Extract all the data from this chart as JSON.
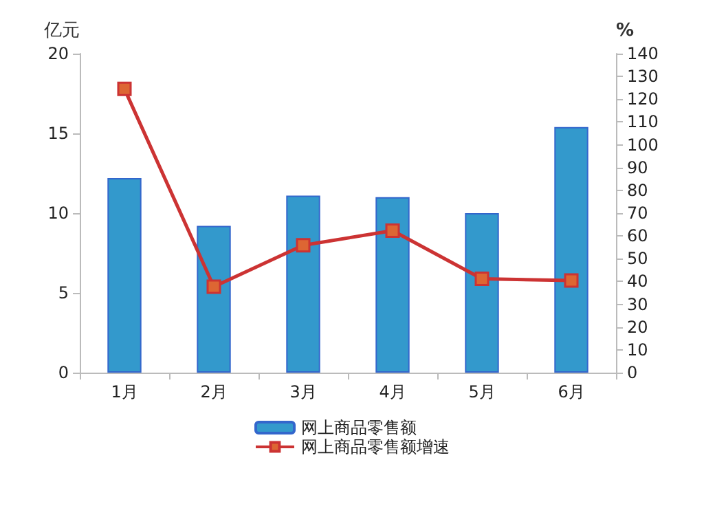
{
  "chart_data": {
    "type": "bar",
    "ylabel": "亿元",
    "y2label": "%",
    "categories": [
      "1月",
      "2月",
      "3月",
      "4月",
      "5月",
      "6月"
    ],
    "series": [
      {
        "name": "网上商品零售额",
        "color": "#3399cc",
        "values": [
          12.2,
          9.2,
          11.1,
          11.0,
          10.0,
          15.4
        ]
      },
      {
        "name": "网上商品零售额增速",
        "type": "line",
        "axis": "y2",
        "color": "#cc3333",
        "marker": "square",
        "values": [
          124.5,
          37.7,
          55.9,
          62.3,
          41.2,
          40.4
        ]
      }
    ],
    "ylim": [
      0,
      20
    ],
    "yticks": [
      0,
      5,
      10,
      15,
      20
    ],
    "y2lim": [
      0,
      140
    ],
    "y2ticks": [
      0,
      10,
      20,
      30,
      40,
      50,
      60,
      70,
      80,
      90,
      100,
      110,
      120,
      130,
      140
    ],
    "legend": "bottom",
    "grid": false
  }
}
